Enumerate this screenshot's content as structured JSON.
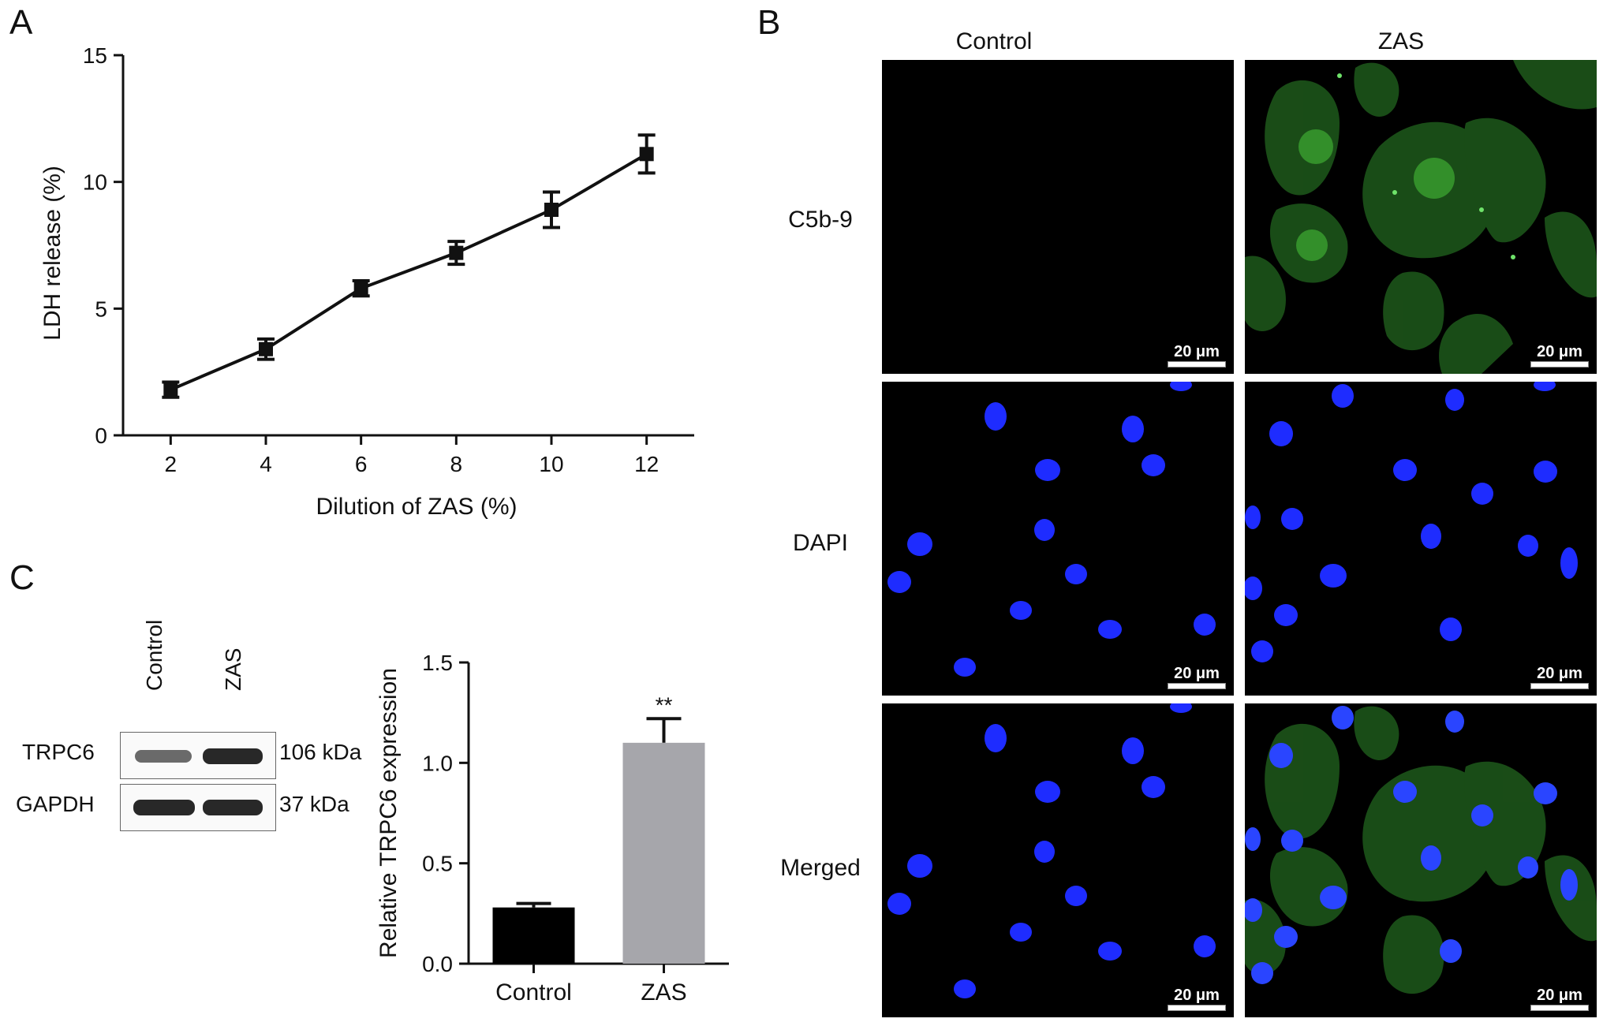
{
  "panels": {
    "a": "A",
    "b": "B",
    "c": "C"
  },
  "chart_data": [
    {
      "type": "line",
      "xlabel": "Dilution of ZAS (%)",
      "ylabel": "LDH release (%)",
      "x": [
        2,
        4,
        6,
        8,
        10,
        12
      ],
      "series": [
        {
          "values": [
            1.8,
            3.4,
            5.8,
            7.2,
            8.9,
            11.1
          ],
          "errors": [
            0.3,
            0.4,
            0.3,
            0.45,
            0.7,
            0.75
          ]
        }
      ],
      "xticks": [
        "2",
        "4",
        "6",
        "8",
        "10",
        "12"
      ],
      "yticks": [
        "0",
        "5",
        "10",
        "15"
      ],
      "xlim": [
        1,
        13
      ],
      "ylim": [
        0,
        15
      ],
      "grid": false
    },
    {
      "type": "bar",
      "categories": [
        "Control",
        "ZAS"
      ],
      "values": [
        0.28,
        1.1
      ],
      "errors": [
        0.02,
        0.12
      ],
      "colors": [
        "#000000",
        "#a6a6ab"
      ],
      "ylabel": "Relative TRPC6 expression",
      "yticks": [
        "0.0",
        "0.5",
        "1.0",
        "1.5"
      ],
      "ylim": [
        0,
        1.5
      ],
      "significance": "**",
      "grid": false
    }
  ],
  "microscopy": {
    "columns": [
      "Control",
      "ZAS"
    ],
    "rows": [
      "C5b-9",
      "DAPI",
      "Merged"
    ],
    "scale_bar": "20 μm"
  },
  "blot": {
    "lanes": [
      "Control",
      "ZAS"
    ],
    "rows": [
      {
        "protein": "TRPC6",
        "size": "106 kDa",
        "intensity": [
          0.4,
          1.0
        ]
      },
      {
        "protein": "GAPDH",
        "size": "37 kDa",
        "intensity": [
          1.0,
          1.0
        ]
      }
    ]
  },
  "colors": {
    "green_stain": "#2f8a2a",
    "blue_stain": "#1e2cff",
    "bar_zas": "#a6a6ab"
  }
}
